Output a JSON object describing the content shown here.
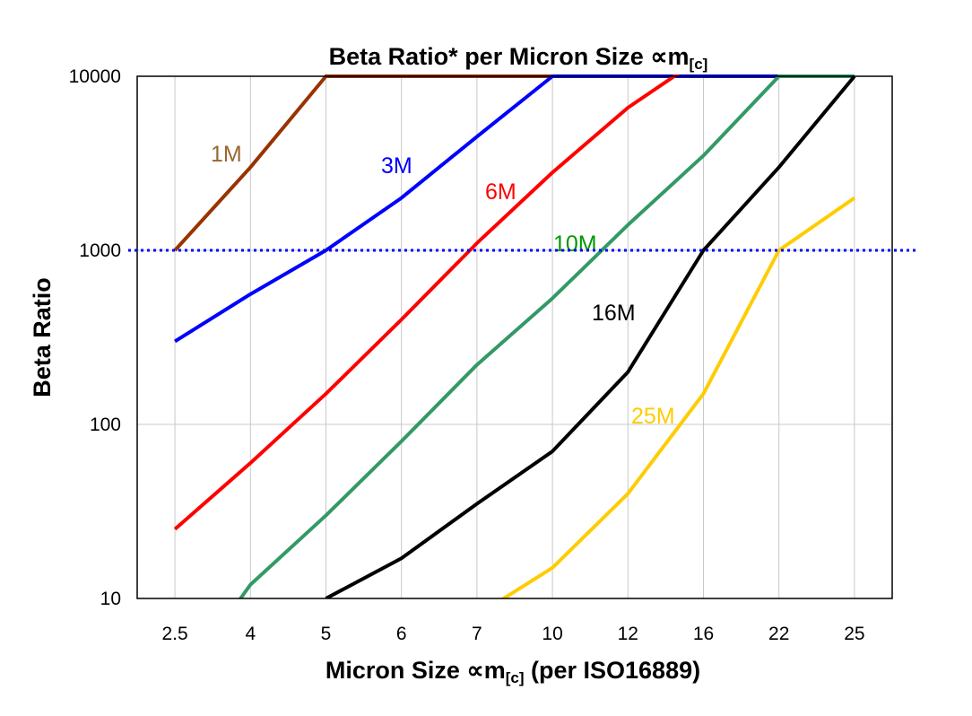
{
  "chart_data": {
    "type": "line",
    "title": "Beta Ratio* per Micron Size ∝m",
    "title_sub": "[c]",
    "xlabel": "Micron Size ∝m",
    "xlabel_sub": "[c]",
    "xlabel_suffix": " (per ISO16889)",
    "ylabel": "Beta Ratio",
    "y_scale": "log",
    "ylim": [
      10,
      10000
    ],
    "yticks": [
      "10",
      "100",
      "1000",
      "10000"
    ],
    "grid": true,
    "categories": [
      "2.5",
      "4",
      "5",
      "6",
      "7",
      "10",
      "12",
      "16",
      "22",
      "25"
    ],
    "reference_line": {
      "value": 1000,
      "color": "#0000ff",
      "style": "dotted"
    },
    "series": [
      {
        "name": "1M",
        "color": "#993300",
        "label_color": "#996633",
        "values": [
          1000,
          3000,
          10000,
          10000,
          10000,
          10000,
          10000,
          10000,
          10000,
          10000
        ]
      },
      {
        "name": "3M",
        "color": "#0000ff",
        "label_color": "#0000ff",
        "values": [
          300,
          560,
          1000,
          2000,
          4500,
          10000,
          10000,
          10000,
          10000,
          10000
        ]
      },
      {
        "name": "6M",
        "color": "#ff0000",
        "label_color": "#ff0000",
        "values": [
          25,
          60,
          150,
          400,
          1100,
          2800,
          6600,
          13000,
          13000,
          13000
        ]
      },
      {
        "name": "10M",
        "color": "#339966",
        "label_color": "#009900",
        "values": [
          3,
          12,
          30,
          80,
          220,
          530,
          1400,
          3500,
          10000,
          10000
        ]
      },
      {
        "name": "16M",
        "color": "#000000",
        "label_color": "#000000",
        "values": [
          null,
          null,
          10,
          17,
          35,
          70,
          200,
          1000,
          3000,
          10000
        ]
      },
      {
        "name": "25M",
        "color": "#ffcc00",
        "label_color": "#ffcc00",
        "values": [
          null,
          null,
          null,
          null,
          8,
          15,
          40,
          150,
          1000,
          2000
        ]
      }
    ]
  }
}
